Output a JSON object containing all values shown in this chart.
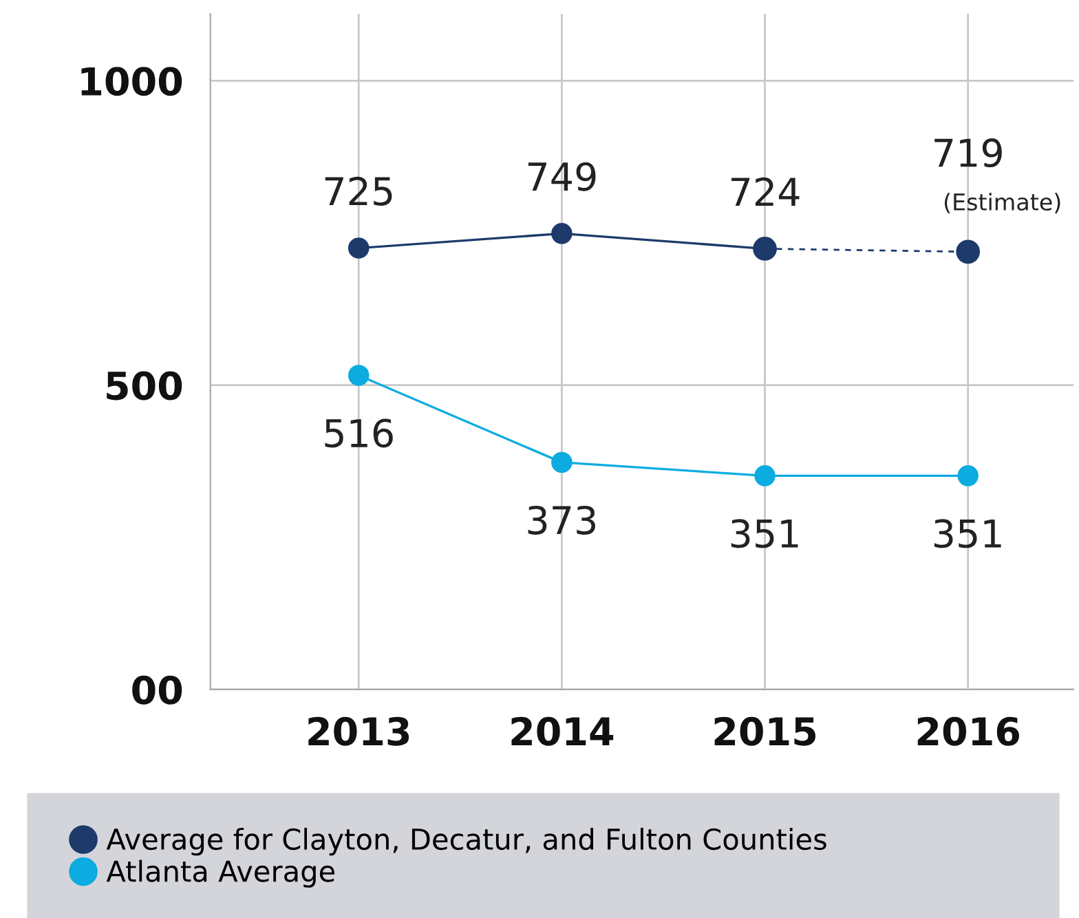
{
  "chart_data": {
    "type": "line",
    "categories": [
      "2013",
      "2014",
      "2015",
      "2016"
    ],
    "series": [
      {
        "name": "Average for Clayton, Decatur, and Fulton Counties",
        "color": "#1d3a6b",
        "values": [
          725,
          749,
          724,
          null
        ],
        "value_labels": [
          "725",
          "749",
          "724",
          null
        ],
        "line_style": "solid"
      },
      {
        "color": "#1d3a6b",
        "values": [
          null,
          null,
          724,
          719
        ],
        "value_labels": [
          null,
          null,
          null,
          "719"
        ],
        "line_style": "dashed"
      },
      {
        "name": "Atlanta Average",
        "color": "#0cace0",
        "values": [
          516,
          373,
          351,
          351
        ],
        "value_labels": [
          "516",
          "373",
          "351",
          "351"
        ],
        "line_style": "solid"
      }
    ],
    "annotations": [
      {
        "text": "(Estimate)",
        "x": "2016",
        "y": 719
      }
    ],
    "ylim": [
      0,
      1110
    ],
    "yticks": [
      {
        "value": 0,
        "label": "00"
      },
      500,
      1000
    ],
    "grid": true,
    "marker": "circle",
    "legend": "bottom"
  }
}
